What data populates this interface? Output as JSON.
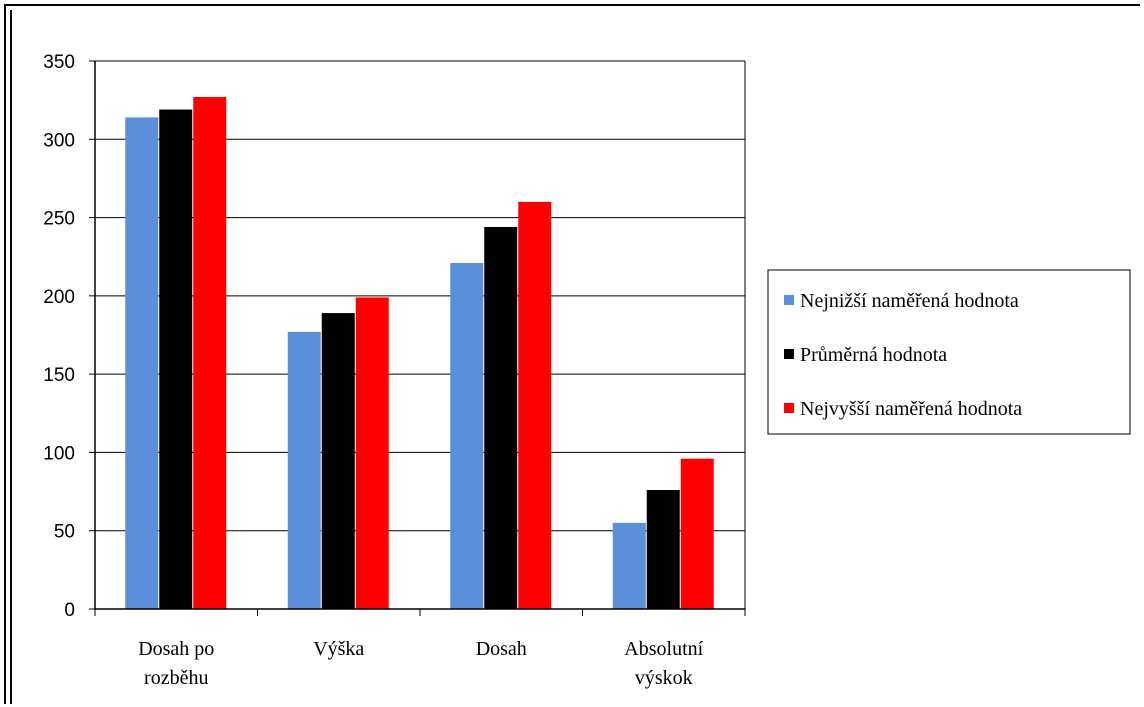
{
  "chart_data": {
    "type": "bar",
    "categories": [
      [
        "Dosah po",
        "rozběhu"
      ],
      [
        "Výška"
      ],
      [
        "Dosah"
      ],
      [
        "Absolutní",
        "výskok"
      ]
    ],
    "series": [
      {
        "name": "Nejnižší naměřená hodnota",
        "color": "#5B8FD9",
        "values": [
          314,
          177,
          221,
          55
        ]
      },
      {
        "name": "Průměrná hodnota",
        "color": "#000000",
        "values": [
          319,
          189,
          244,
          76
        ]
      },
      {
        "name": "Nejvyšší naměřená hodnota",
        "color": "#FF0000",
        "values": [
          327,
          199,
          260,
          96
        ]
      }
    ],
    "ylim": [
      0,
      350
    ],
    "yticks": [
      0,
      50,
      100,
      150,
      200,
      250,
      300,
      350
    ],
    "grid": true,
    "legend_position": "right"
  }
}
